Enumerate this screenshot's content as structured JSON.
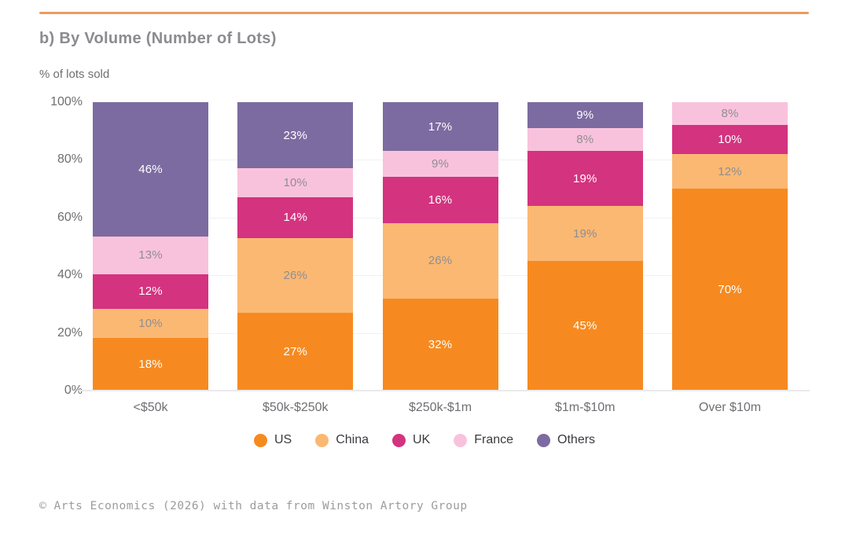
{
  "header": {
    "title": "b) By Volume (Number of Lots)",
    "axis_note": "% of lots sold"
  },
  "footer": {
    "credit": "© Arts Economics (2026) with data from Winston Artory Group"
  },
  "colors": {
    "accent_line": "#EC9A62",
    "grid": "#F1F1F4",
    "baseline": "#E9E9EC",
    "axis_text": "#6F6F73",
    "title_text": "#8B8B90",
    "legend_text": "#3B3B40",
    "footer_text": "#9C9C9C"
  },
  "chart_data": {
    "type": "bar",
    "stacked": true,
    "title": "b) By Volume (Number of Lots)",
    "ylabel": "% of lots sold",
    "unit": "%",
    "categories": [
      "<$50k",
      "$50k-$250k",
      "$250k-$1m",
      "$1m-$10m",
      "Over $10m"
    ],
    "series": [
      {
        "name": "US",
        "color": "#F68A20",
        "label_color": "#FFFFFF",
        "values": [
          18,
          27,
          32,
          45,
          70
        ]
      },
      {
        "name": "China",
        "color": "#FBB873",
        "label_color": "#8E8E92",
        "values": [
          10,
          26,
          26,
          19,
          12
        ]
      },
      {
        "name": "UK",
        "color": "#D4337F",
        "label_color": "#FFFFFF",
        "values": [
          12,
          14,
          16,
          19,
          10
        ]
      },
      {
        "name": "France",
        "color": "#F9C2DC",
        "label_color": "#8E8E92",
        "values": [
          13,
          10,
          9,
          8,
          8
        ]
      },
      {
        "name": "Others",
        "color": "#7C6BA0",
        "label_color": "#FFFFFF",
        "values": [
          46,
          23,
          17,
          9,
          0
        ]
      }
    ],
    "ytick_labels": [
      "0%",
      "20%",
      "40%",
      "60%",
      "80%",
      "100%"
    ],
    "ytick_values": [
      0,
      20,
      40,
      60,
      80,
      100
    ],
    "gridline_values": [
      20,
      40,
      60,
      80
    ],
    "ylim": [
      0,
      100
    ],
    "grid": true,
    "legend_position": "bottom"
  }
}
